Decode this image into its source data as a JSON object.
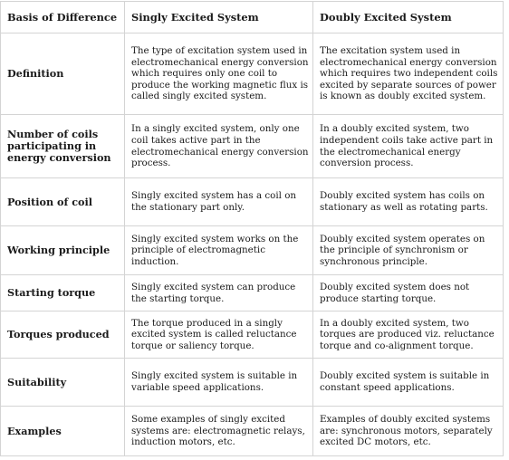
{
  "table": {
    "headers": [
      "Basis of Difference",
      "Singly Excited System",
      "Doubly Excited System"
    ],
    "rows": [
      {
        "basis": "Definition",
        "singly": "The type of excitation system used in electromechanical energy conversion which requires only one coil to produce the working magnetic flux is called singly excited system.",
        "doubly": "The excitation system used in electromechanical energy conversion which requires two independent coils excited by separate sources of power is known as doubly excited system."
      },
      {
        "basis": "Number of coils participating in energy conversion",
        "singly": "In a singly excited system, only one coil takes active part in the electromechanical energy conversion process.",
        "doubly": "In a doubly excited system, two independent coils take active part in the electromechanical energy conversion process."
      },
      {
        "basis": "Position of coil",
        "singly": "Singly excited system has a coil on the stationary part only.",
        "doubly": "Doubly excited system has coils on stationary as well as rotating parts."
      },
      {
        "basis": "Working principle",
        "singly": "Singly excited system works on the principle of electromagnetic induction.",
        "doubly": "Doubly excited system operates on the principle of synchronism or synchronous principle."
      },
      {
        "basis": "Starting torque",
        "singly": "Singly excited system can produce the starting torque.",
        "doubly": "Doubly excited system does not produce starting torque."
      },
      {
        "basis": "Torques produced",
        "singly": "The torque produced in a singly excited system is called reluctance torque or saliency torque.",
        "doubly": "In a doubly excited system, two torques are produced viz. reluctance torque and co-alignment torque."
      },
      {
        "basis": "Suitability",
        "singly": "Singly excited system is suitable in variable speed applications.",
        "doubly": "Doubly excited system is suitable in constant speed applications."
      },
      {
        "basis": "Examples",
        "singly": "Some examples of singly excited systems are: electromagnetic relays, induction motors, etc.",
        "doubly": "Examples of doubly excited systems are: synchronous motors, separately excited DC motors, etc."
      }
    ]
  }
}
